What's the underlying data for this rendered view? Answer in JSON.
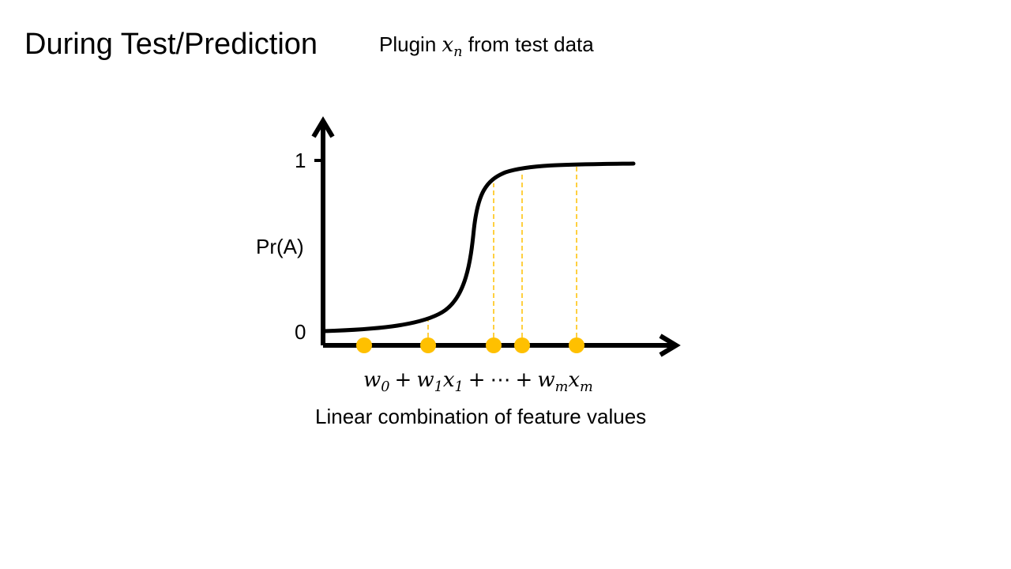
{
  "slide": {
    "title": "During Test/Prediction",
    "subtitle": {
      "prefix": "Plugin ",
      "var": "x",
      "sub": "n",
      "suffix": " from test data"
    }
  },
  "diagram": {
    "ylabel": "Pr(A)",
    "tick_one": "1",
    "tick_zero": "0",
    "xlabel": "Linear combination of feature values",
    "formula": {
      "w0": "w",
      "w0_sub": "0",
      "plus1": "+",
      "w1": "w",
      "w1_sub": "1",
      "x1": "x",
      "x1_sub": "1",
      "plus2": "+",
      "dots": "⋯",
      "plus3": "+",
      "wm": "w",
      "wm_sub": "m",
      "xm": "x",
      "xm_sub": "m"
    },
    "colors": {
      "curve": "#000000",
      "points": "#FFC000",
      "axes": "#000000"
    }
  }
}
